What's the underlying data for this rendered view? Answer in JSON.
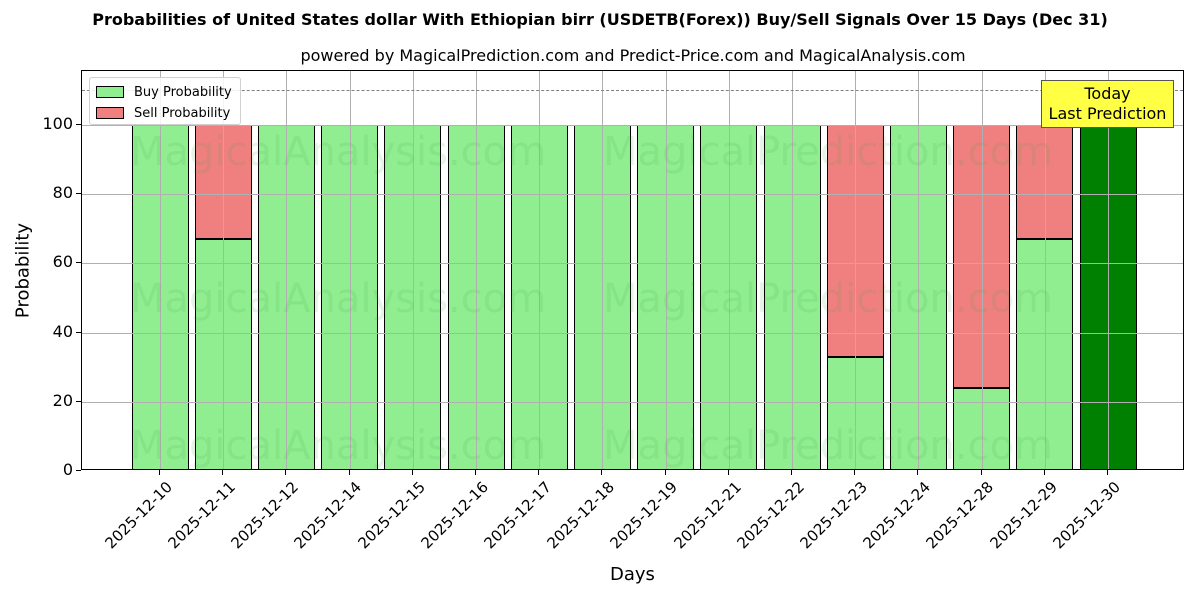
{
  "chart_data": {
    "type": "bar",
    "stacked": true,
    "title": "Probabilities of United States dollar With Ethiopian birr (USDETB(Forex)) Buy/Sell Signals Over 15 Days (Dec 31)",
    "subtitle": "powered by MagicalPrediction.com and Predict-Price.com and MagicalAnalysis.com",
    "xlabel": "Days",
    "ylabel": "Probability",
    "ylim": [
      0,
      115
    ],
    "yticks": [
      0,
      20,
      40,
      60,
      80,
      100
    ],
    "grid": true,
    "legend_position": "upper left",
    "categories": [
      "2025-12-10",
      "2025-12-11",
      "2025-12-12",
      "2025-12-14",
      "2025-12-15",
      "2025-12-16",
      "2025-12-17",
      "2025-12-18",
      "2025-12-19",
      "2025-12-21",
      "2025-12-22",
      "2025-12-23",
      "2025-12-24",
      "2025-12-28",
      "2025-12-29",
      "2025-12-30"
    ],
    "series": [
      {
        "name": "Buy Probability",
        "color": "#90ee90",
        "values": [
          100,
          67,
          100,
          100,
          100,
          100,
          100,
          100,
          100,
          100,
          100,
          33,
          100,
          24,
          67,
          100
        ]
      },
      {
        "name": "Sell Probability",
        "color": "#f08080",
        "values": [
          0,
          33,
          0,
          0,
          0,
          0,
          0,
          0,
          0,
          0,
          0,
          67,
          0,
          76,
          33,
          0
        ]
      }
    ],
    "highlight": {
      "category": "2025-12-30",
      "color": "#008000"
    },
    "reference_line": {
      "y": 110,
      "style": "dashed",
      "color": "#808080"
    },
    "annotation": {
      "text_line1": "Today",
      "text_line2": "Last Prediction",
      "background": "#ffff44"
    },
    "watermarks": [
      "MagicalAnalysis.com",
      "MagicalPrediction.com"
    ]
  }
}
